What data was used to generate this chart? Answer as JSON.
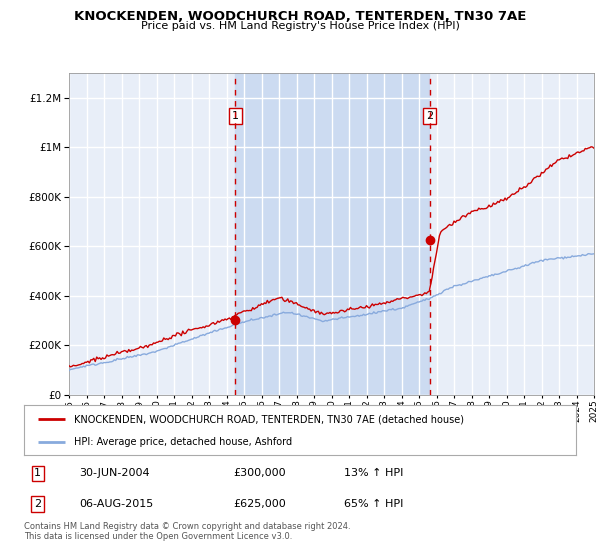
{
  "title": "KNOCKENDEN, WOODCHURCH ROAD, TENTERDEN, TN30 7AE",
  "subtitle": "Price paid vs. HM Land Registry's House Price Index (HPI)",
  "ylim": [
    0,
    1300000
  ],
  "yticks": [
    0,
    200000,
    400000,
    600000,
    800000,
    1000000,
    1200000
  ],
  "bg_color": "#ffffff",
  "plot_bg_color": "#e8eef8",
  "grid_color": "#ffffff",
  "red_line_color": "#cc0000",
  "blue_line_color": "#88aadd",
  "vline_color": "#cc0000",
  "sale1_date_x": 2004.5,
  "sale1_price": 300000,
  "sale2_date_x": 2015.6,
  "sale2_price": 625000,
  "marker_color": "#cc0000",
  "legend_label_red": "KNOCKENDEN, WOODCHURCH ROAD, TENTERDEN, TN30 7AE (detached house)",
  "legend_label_blue": "HPI: Average price, detached house, Ashford",
  "footnote": "Contains HM Land Registry data © Crown copyright and database right 2024.\nThis data is licensed under the Open Government Licence v3.0.",
  "table_row1_label": "1",
  "table_row1_date": "30-JUN-2004",
  "table_row1_price": "£300,000",
  "table_row1_hpi": "13% ↑ HPI",
  "table_row2_label": "2",
  "table_row2_date": "06-AUG-2015",
  "table_row2_price": "£625,000",
  "table_row2_hpi": "65% ↑ HPI",
  "xmin": 1995,
  "xmax": 2025
}
